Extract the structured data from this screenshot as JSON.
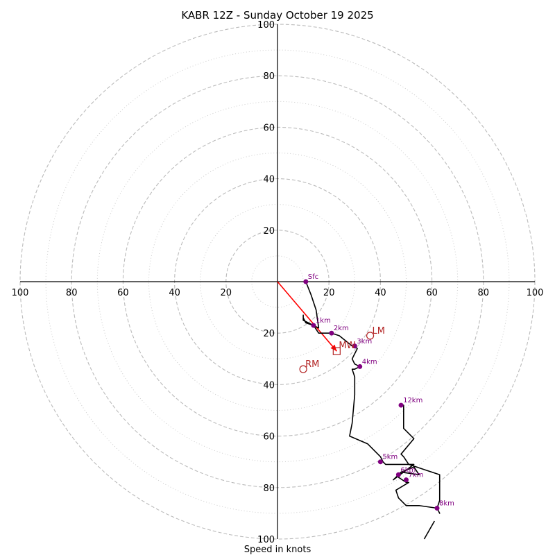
{
  "chart_data": {
    "type": "hodograph",
    "title": "KABR 12Z - Sunday October 19 2025",
    "xlabel": "Speed in knots",
    "range": 100,
    "ring_major": [
      20,
      40,
      60,
      80,
      100
    ],
    "ring_minor": [
      10,
      30,
      50,
      70,
      90
    ],
    "axis_ticks_top": [
      "20",
      "40",
      "60",
      "80",
      "100"
    ],
    "axis_ticks_left": [
      "100",
      "80",
      "60",
      "40",
      "20"
    ],
    "axis_ticks_right": [
      "20",
      "40",
      "60",
      "80",
      "100"
    ],
    "axis_ticks_bottom": [
      "20",
      "40",
      "60",
      "80",
      "100"
    ],
    "trace": [
      [
        11,
        0
      ],
      [
        13,
        -5
      ],
      [
        15,
        -11
      ],
      [
        16,
        -18
      ],
      [
        12,
        -16
      ],
      [
        10,
        -15
      ],
      [
        10,
        -14
      ],
      [
        10,
        -13
      ],
      [
        10,
        -14
      ],
      [
        11,
        -16
      ],
      [
        14,
        -17
      ],
      [
        16,
        -20
      ],
      [
        21,
        -20
      ],
      [
        24,
        -21
      ],
      [
        29,
        -25
      ],
      [
        30,
        -25
      ],
      [
        31,
        -26
      ],
      [
        30,
        -28
      ],
      [
        29,
        -30
      ],
      [
        30,
        -32
      ],
      [
        32,
        -33
      ],
      [
        30,
        -34
      ],
      [
        29,
        -34
      ],
      [
        30,
        -37
      ],
      [
        30,
        -42
      ],
      [
        30,
        -44
      ],
      [
        29,
        -55
      ],
      [
        28,
        -60
      ],
      [
        35,
        -63
      ],
      [
        40,
        -68
      ],
      [
        41,
        -70
      ],
      [
        42,
        -71
      ],
      [
        50,
        -71
      ],
      [
        53,
        -71
      ],
      [
        45,
        -77
      ],
      [
        48,
        -74
      ],
      [
        53,
        -72
      ],
      [
        55,
        -75
      ],
      [
        48,
        -74
      ],
      [
        47,
        -76
      ],
      [
        50,
        -78
      ],
      [
        51,
        -78
      ],
      [
        46,
        -81
      ],
      [
        47,
        -84
      ],
      [
        50,
        -87
      ],
      [
        55,
        -87
      ],
      [
        62,
        -88
      ],
      [
        63,
        -90
      ],
      [
        62,
        -88
      ],
      [
        63,
        -85
      ],
      [
        63,
        -82
      ],
      [
        63,
        -79
      ],
      [
        63,
        -75
      ],
      [
        57,
        -73
      ],
      [
        51,
        -71
      ],
      [
        49,
        -68
      ],
      [
        48,
        -67
      ],
      [
        53,
        -61
      ],
      [
        52,
        -60
      ],
      [
        49,
        -57
      ],
      [
        49,
        -48
      ],
      [
        48,
        -48
      ],
      [
        48,
        -48
      ]
    ],
    "trace_tail": [
      [
        61,
        -93
      ],
      [
        57,
        -100
      ]
    ],
    "height_markers": [
      {
        "label": "Sfc",
        "u": 11,
        "v": 0
      },
      {
        "label": "1km",
        "u": 14,
        "v": -17
      },
      {
        "label": "2km",
        "u": 21,
        "v": -20
      },
      {
        "label": "3km",
        "u": 30,
        "v": -25
      },
      {
        "label": "4km",
        "u": 32,
        "v": -33
      },
      {
        "label": "5km",
        "u": 40,
        "v": -70
      },
      {
        "label": "6km",
        "u": 47,
        "v": -75
      },
      {
        "label": "7km",
        "u": 50,
        "v": -77
      },
      {
        "label": "8km",
        "u": 62,
        "v": -88
      },
      {
        "label": "12km",
        "u": 48,
        "v": -48
      }
    ],
    "mean_wind": {
      "label": "MW",
      "u": 23,
      "v": -27
    },
    "right_mover": {
      "label": "RM",
      "u": 10,
      "v": -34
    },
    "left_mover": {
      "label": "LM",
      "u": 36,
      "v": -21
    },
    "colors": {
      "trace": "#000000",
      "markers": "#800080",
      "storm": "#b22222",
      "shear_vector": "#ff0000",
      "rings": "#bbbbbb",
      "rings_minor": "#cccccc",
      "axis": "#000000"
    }
  }
}
